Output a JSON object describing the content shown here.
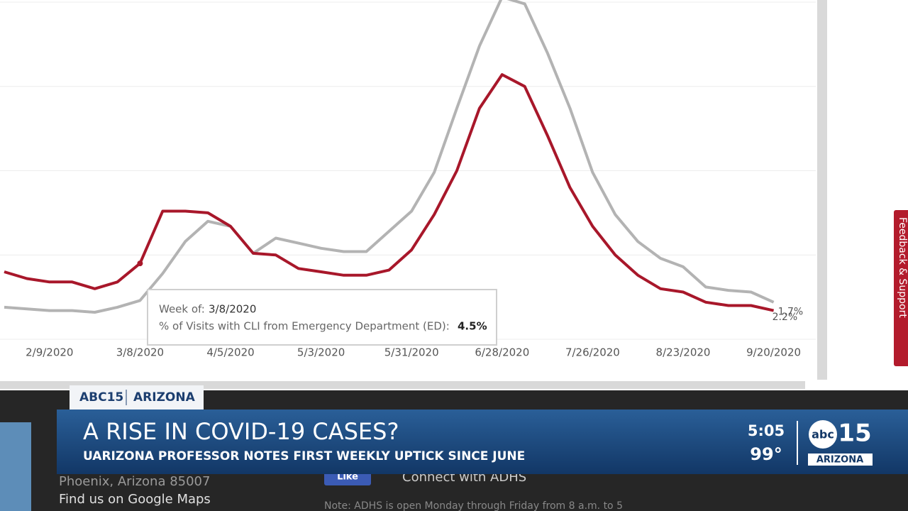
{
  "chart_data": {
    "type": "line",
    "x": [
      null,
      null,
      "2/9/2020",
      null,
      null,
      null,
      "3/8/2020",
      null,
      null,
      null,
      "4/5/2020",
      null,
      null,
      null,
      "5/3/2020",
      null,
      null,
      null,
      "5/31/2020",
      null,
      null,
      null,
      "6/28/2020",
      null,
      null,
      null,
      "7/26/2020",
      null,
      null,
      null,
      "8/23/2020",
      null,
      null,
      null,
      "9/20/2020"
    ],
    "series": [
      {
        "color": "#b3b3b3",
        "values": [
          1.9,
          1.8,
          1.7,
          1.7,
          1.6,
          1.9,
          2.3,
          3.9,
          5.8,
          7.0,
          6.7,
          5.1,
          6.0,
          5.7,
          5.4,
          5.2,
          5.2,
          6.4,
          7.6,
          9.9,
          13.7,
          17.4,
          20.3,
          19.9,
          17.0,
          13.7,
          9.9,
          7.4,
          5.8,
          4.8,
          4.3,
          3.1,
          2.9,
          2.8,
          2.2
        ],
        "value_labels": [
          null,
          null,
          null,
          null,
          null,
          null,
          null,
          null,
          null,
          null,
          null,
          null,
          null,
          null,
          null,
          null,
          null,
          null,
          null,
          null,
          null,
          null,
          null,
          null,
          null,
          null,
          null,
          null,
          null,
          null,
          null,
          null,
          null,
          null,
          "2.2%"
        ]
      },
      {
        "color": "#a8172a",
        "values": [
          4.0,
          3.6,
          3.4,
          3.4,
          3.0,
          3.4,
          4.5,
          7.6,
          7.6,
          7.5,
          6.7,
          5.1,
          5.0,
          4.2,
          4.0,
          3.8,
          3.8,
          4.1,
          5.3,
          7.4,
          10.0,
          13.7,
          15.7,
          15.0,
          12.1,
          9.0,
          6.7,
          5.0,
          3.8,
          3.0,
          2.8,
          2.2,
          2.0,
          2.0,
          1.7
        ],
        "value_labels": [
          null,
          null,
          null,
          null,
          null,
          null,
          "4.5%",
          null,
          null,
          null,
          null,
          null,
          null,
          null,
          null,
          null,
          null,
          null,
          null,
          null,
          null,
          null,
          null,
          null,
          null,
          null,
          null,
          null,
          null,
          null,
          null,
          null,
          null,
          null,
          "1.7%"
        ]
      }
    ],
    "ylim": [
      0,
      20
    ],
    "yticks": [
      0,
      5,
      10,
      15,
      20
    ],
    "grid": true,
    "tooltip": {
      "week_label": "Week of:",
      "metric_label": "% of Visits with CLI from Emergency Department (ED):"
    }
  },
  "page": {
    "feedback": "Feedback & Support",
    "address": "Phoenix, Arizona 85007",
    "maps": "Find us on Google Maps",
    "like": "Like",
    "connect": "Connect with ADHS",
    "note": "Note: ADHS is open Monday through Friday from 8 a.m. to 5"
  },
  "broadcast": {
    "station": "ABC15",
    "region": "ARIZONA",
    "headline": "A RISE IN COVID-19 CASES?",
    "subhead": "UARIZONA PROFESSOR NOTES FIRST WEEKLY UPTICK SINCE JUNE",
    "time": "5:05",
    "temperature": "99°",
    "logo_abc": "abc",
    "logo_15": "15",
    "logo_region": "ARIZONA"
  }
}
